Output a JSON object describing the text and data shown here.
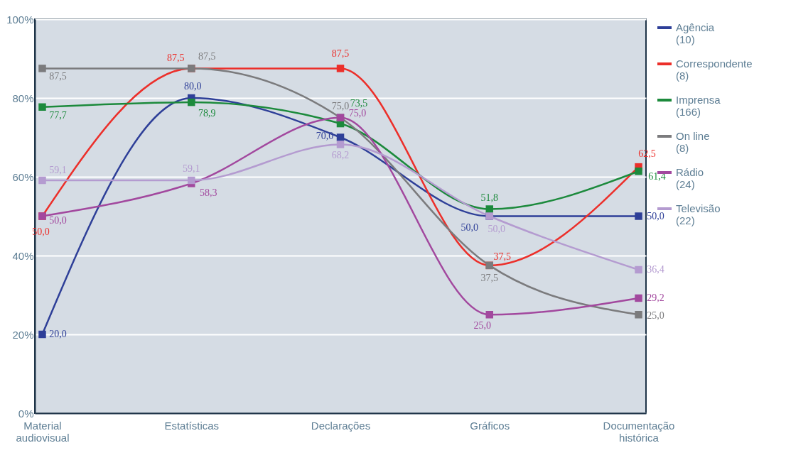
{
  "chart_data": {
    "type": "line",
    "categories": [
      "Material audiovisual",
      "Estatísticas",
      "Declarações",
      "Gráficos",
      "Documentação histórica"
    ],
    "ylim": [
      0,
      100
    ],
    "yticks": [
      {
        "value": 0,
        "label": "0%"
      },
      {
        "value": 20,
        "label": "20%"
      },
      {
        "value": 40,
        "label": "40%"
      },
      {
        "value": 60,
        "label": "60%"
      },
      {
        "value": 80,
        "label": "80%"
      },
      {
        "value": 100,
        "label": "100%"
      }
    ],
    "grid": "y",
    "legend": "right",
    "marker": "square",
    "series": [
      {
        "name": "Agência (10)",
        "color": "#2e3f98",
        "values": [
          20.0,
          80.0,
          70.0,
          50.0,
          50.0
        ],
        "value_labels": [
          "20,0",
          "80,0",
          "70,0",
          "50,0",
          "50,0"
        ]
      },
      {
        "name": "Correspondente (8)",
        "color": "#ec2f2a",
        "values": [
          50.0,
          87.5,
          87.5,
          37.5,
          62.5
        ],
        "value_labels": [
          "50,0",
          "87,5",
          "87,5",
          "37,5",
          "62,5"
        ]
      },
      {
        "name": "Imprensa (166)",
        "color": "#1c8a3c",
        "values": [
          77.7,
          78.9,
          73.5,
          51.8,
          61.4
        ],
        "value_labels": [
          "77,7",
          "78,9",
          "73,5",
          "51,8",
          "61,4"
        ]
      },
      {
        "name": "On line (8)",
        "color": "#7b7b7d",
        "values": [
          87.5,
          87.5,
          75.0,
          37.5,
          25.0
        ],
        "value_labels": [
          "87,5",
          "87,5",
          "75,0",
          "37,5",
          "25,0"
        ]
      },
      {
        "name": "Rádio (24)",
        "color": "#a2489e",
        "values": [
          50.0,
          58.3,
          75.0,
          25.0,
          29.2
        ],
        "value_labels": [
          "50,0",
          "58,3",
          "75,0",
          "25,0",
          "29,2"
        ]
      },
      {
        "name": "Televisão (22)",
        "color": "#b49bd0",
        "values": [
          59.1,
          59.1,
          68.2,
          50.0,
          36.4
        ],
        "value_labels": [
          "59,1",
          "59,1",
          "68,2",
          "50,0",
          "36,4"
        ]
      }
    ]
  }
}
